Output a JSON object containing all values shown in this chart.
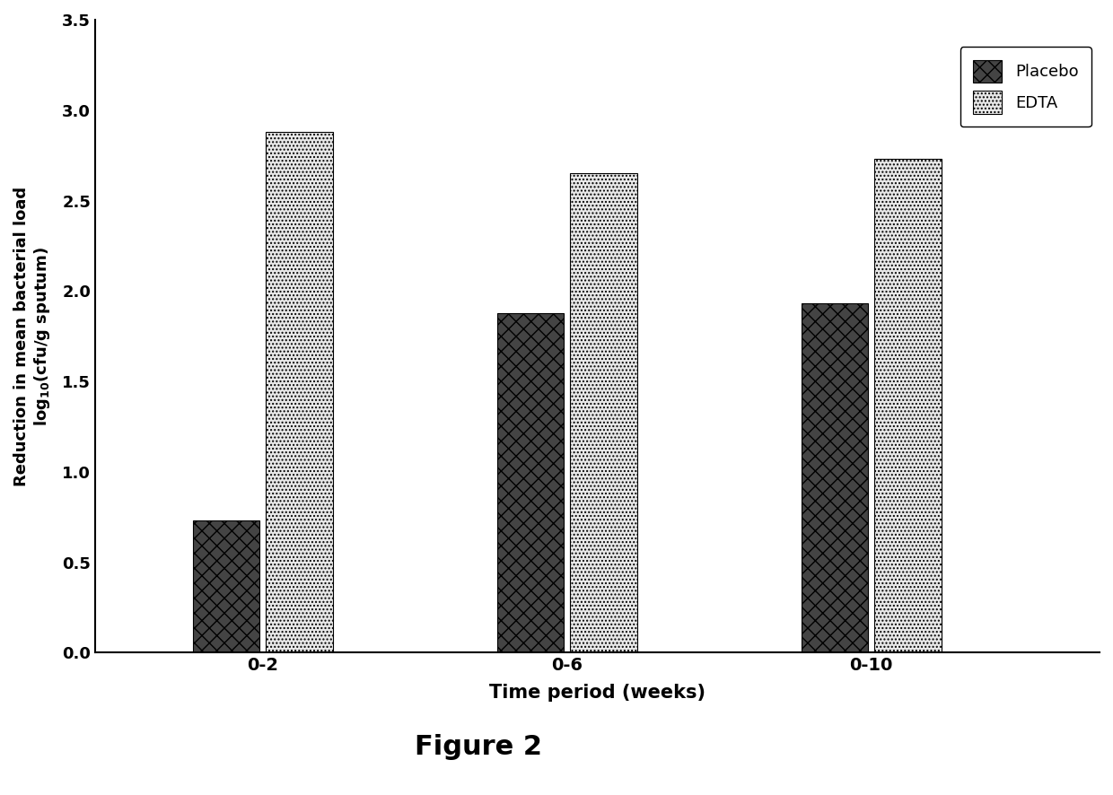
{
  "categories": [
    "0-2",
    "0-6",
    "0-10"
  ],
  "placebo_values": [
    0.73,
    1.88,
    1.93
  ],
  "edta_values": [
    2.88,
    2.65,
    2.73
  ],
  "ylim": [
    0.0,
    3.5
  ],
  "yticks": [
    0.0,
    0.5,
    1.0,
    1.5,
    2.0,
    2.5,
    3.0,
    3.5
  ],
  "xlabel": "Time period (weeks)",
  "ylabel": "Reduction in mean bacterial load\n$\\mathregular{log_{10}}$(cfu/g sputum)",
  "legend_labels": [
    "Placebo",
    "EDTA"
  ],
  "figure_label": "Figure 2",
  "background_color": "#ffffff",
  "bar_width": 0.22,
  "group_positions": [
    1.0,
    2.0,
    3.0
  ]
}
